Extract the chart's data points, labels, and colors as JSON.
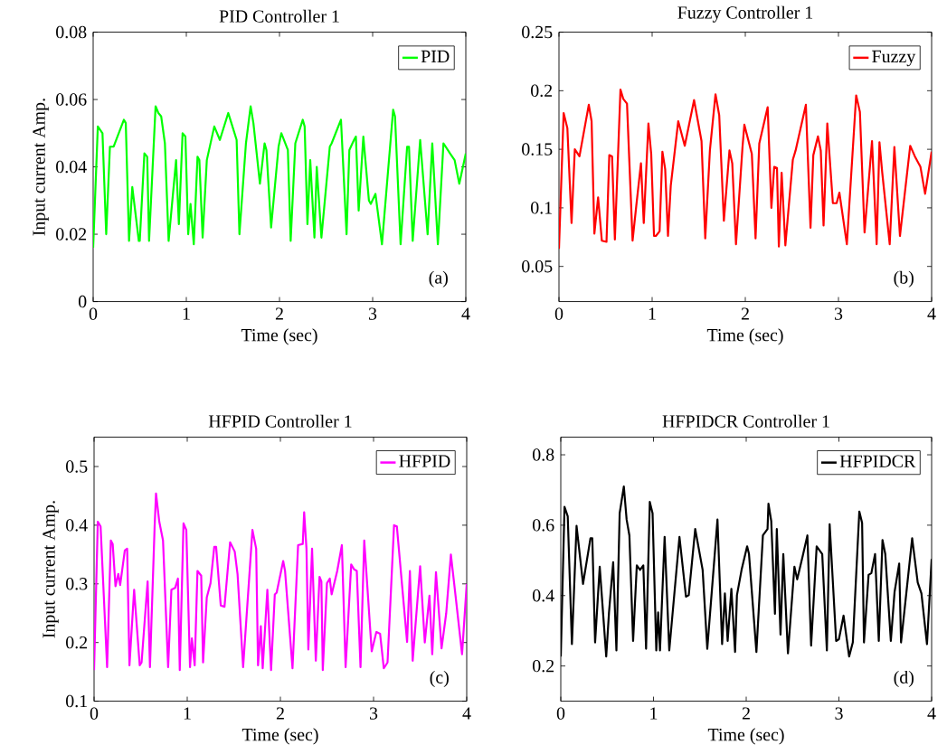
{
  "chart_data": [
    {
      "type": "line",
      "title": "PID Controller 1",
      "xlabel": "Time (sec)",
      "ylabel": "Input current  Amp.",
      "xlim": [
        0,
        4
      ],
      "ylim": [
        0,
        0.08
      ],
      "xticks": [
        0,
        1,
        2,
        3,
        4
      ],
      "yticks": [
        0,
        0.02,
        0.04,
        0.06,
        0.08
      ],
      "legend": "top right",
      "annotations": [
        "(a)"
      ],
      "series": [
        {
          "name": "PID",
          "color": "#00ff00",
          "x": [
            0,
            0.05,
            0.1,
            0.14,
            0.18,
            0.22,
            0.33,
            0.35,
            0.385,
            0.42,
            0.49,
            0.5,
            0.55,
            0.58,
            0.6,
            0.67,
            0.7,
            0.73,
            0.77,
            0.81,
            0.89,
            0.92,
            0.96,
            0.99,
            1.02,
            1.045,
            1.08,
            1.12,
            1.14,
            1.175,
            1.22,
            1.3,
            1.36,
            1.45,
            1.54,
            1.57,
            1.64,
            1.69,
            1.72,
            1.79,
            1.84,
            1.86,
            1.91,
            1.99,
            2.02,
            2.09,
            2.12,
            2.17,
            2.25,
            2.27,
            2.3,
            2.33,
            2.375,
            2.4,
            2.45,
            2.54,
            2.56,
            2.66,
            2.72,
            2.75,
            2.8,
            2.82,
            2.85,
            2.9,
            2.96,
            2.98,
            3.03,
            3.1,
            3.22,
            3.24,
            3.3,
            3.37,
            3.39,
            3.43,
            3.51,
            3.59,
            3.64,
            3.7,
            3.76,
            3.83,
            3.88,
            3.93,
            4.0
          ],
          "values": [
            0.016,
            0.052,
            0.05,
            0.02,
            0.046,
            0.046,
            0.054,
            0.053,
            0.018,
            0.034,
            0.018,
            0.018,
            0.044,
            0.043,
            0.018,
            0.058,
            0.056,
            0.055,
            0.047,
            0.018,
            0.042,
            0.023,
            0.05,
            0.049,
            0.02,
            0.029,
            0.017,
            0.043,
            0.042,
            0.019,
            0.042,
            0.052,
            0.048,
            0.056,
            0.048,
            0.02,
            0.047,
            0.058,
            0.053,
            0.035,
            0.047,
            0.045,
            0.022,
            0.046,
            0.05,
            0.045,
            0.018,
            0.047,
            0.054,
            0.052,
            0.023,
            0.042,
            0.019,
            0.04,
            0.019,
            0.046,
            0.047,
            0.054,
            0.02,
            0.045,
            0.048,
            0.049,
            0.027,
            0.049,
            0.03,
            0.029,
            0.032,
            0.017,
            0.057,
            0.055,
            0.017,
            0.046,
            0.046,
            0.018,
            0.048,
            0.02,
            0.047,
            0.017,
            0.047,
            0.044,
            0.042,
            0.035,
            0.044
          ]
        }
      ]
    },
    {
      "type": "line",
      "title": "Fuzzy Controller 1",
      "xlabel": "Time (sec)",
      "xlim": [
        0,
        4
      ],
      "ylim": [
        0.02,
        0.25
      ],
      "xticks": [
        0,
        1,
        2,
        3,
        4
      ],
      "yticks": [
        0.05,
        0.1,
        0.15,
        0.2,
        0.25
      ],
      "legend": "top right",
      "annotations": [
        "(b)"
      ],
      "series": [
        {
          "name": "Fuzzy",
          "color": "#ff0000",
          "x": [
            0,
            0.05,
            0.09,
            0.135,
            0.17,
            0.22,
            0.32,
            0.35,
            0.38,
            0.42,
            0.46,
            0.51,
            0.54,
            0.57,
            0.6,
            0.66,
            0.69,
            0.73,
            0.79,
            0.83,
            0.88,
            0.91,
            0.96,
            0.99,
            1.02,
            1.04,
            1.08,
            1.11,
            1.14,
            1.17,
            1.2,
            1.28,
            1.35,
            1.45,
            1.53,
            1.57,
            1.62,
            1.68,
            1.72,
            1.77,
            1.83,
            1.86,
            1.9,
            1.97,
            1.99,
            2.07,
            2.11,
            2.15,
            2.24,
            2.28,
            2.31,
            2.34,
            2.36,
            2.39,
            2.43,
            2.51,
            2.54,
            2.65,
            2.7,
            2.73,
            2.78,
            2.81,
            2.84,
            2.88,
            2.94,
            2.98,
            3.01,
            3.09,
            3.19,
            3.23,
            3.28,
            3.36,
            3.41,
            3.44,
            3.47,
            3.55,
            3.6,
            3.66,
            3.77,
            3.82,
            3.88,
            3.93,
            4.0
          ],
          "values": [
            0.065,
            0.181,
            0.168,
            0.087,
            0.15,
            0.144,
            0.188,
            0.174,
            0.078,
            0.109,
            0.072,
            0.071,
            0.145,
            0.144,
            0.073,
            0.201,
            0.193,
            0.189,
            0.072,
            0.102,
            0.138,
            0.087,
            0.172,
            0.146,
            0.076,
            0.076,
            0.08,
            0.148,
            0.133,
            0.076,
            0.119,
            0.174,
            0.153,
            0.192,
            0.157,
            0.074,
            0.149,
            0.197,
            0.179,
            0.089,
            0.149,
            0.138,
            0.069,
            0.152,
            0.171,
            0.146,
            0.074,
            0.155,
            0.186,
            0.1,
            0.135,
            0.134,
            0.067,
            0.13,
            0.068,
            0.141,
            0.149,
            0.188,
            0.083,
            0.145,
            0.161,
            0.149,
            0.085,
            0.172,
            0.104,
            0.104,
            0.113,
            0.069,
            0.196,
            0.182,
            0.079,
            0.157,
            0.069,
            0.156,
            0.13,
            0.069,
            0.152,
            0.076,
            0.153,
            0.144,
            0.135,
            0.112,
            0.148
          ]
        }
      ]
    },
    {
      "type": "line",
      "title": "HFPID Controller 1",
      "xlabel": "Time (sec)",
      "ylabel": "Input current  Amp.",
      "xlim": [
        0,
        4
      ],
      "ylim": [
        0.1,
        0.55
      ],
      "xticks": [
        0,
        1,
        2,
        3,
        4
      ],
      "yticks": [
        0.1,
        0.2,
        0.3,
        0.4,
        0.5
      ],
      "legend": "top right",
      "annotations": [
        "(c)"
      ],
      "series": [
        {
          "name": "HFPID",
          "color": "#ff00ff",
          "x": [
            0,
            0.04,
            0.07,
            0.14,
            0.18,
            0.2,
            0.23,
            0.26,
            0.28,
            0.33,
            0.355,
            0.38,
            0.43,
            0.49,
            0.51,
            0.575,
            0.6,
            0.65,
            0.665,
            0.7,
            0.74,
            0.795,
            0.83,
            0.87,
            0.9,
            0.92,
            0.96,
            0.99,
            1.03,
            1.05,
            1.08,
            1.11,
            1.15,
            1.17,
            1.21,
            1.25,
            1.29,
            1.31,
            1.36,
            1.4,
            1.46,
            1.51,
            1.54,
            1.6,
            1.7,
            1.74,
            1.76,
            1.79,
            1.81,
            1.86,
            1.9,
            1.94,
            1.96,
            2.03,
            2.05,
            2.13,
            2.19,
            2.24,
            2.255,
            2.28,
            2.3,
            2.34,
            2.38,
            2.42,
            2.44,
            2.455,
            2.5,
            2.53,
            2.55,
            2.61,
            2.66,
            2.7,
            2.76,
            2.79,
            2.82,
            2.86,
            2.9,
            2.98,
            3.03,
            3.07,
            3.11,
            3.15,
            3.22,
            3.25,
            3.36,
            3.39,
            3.42,
            3.5,
            3.55,
            3.6,
            3.63,
            3.67,
            3.73,
            3.78,
            3.83,
            3.88,
            3.95,
            4.0
          ],
          "values": [
            0.153,
            0.406,
            0.398,
            0.158,
            0.374,
            0.368,
            0.296,
            0.317,
            0.298,
            0.357,
            0.36,
            0.161,
            0.29,
            0.161,
            0.166,
            0.304,
            0.158,
            0.398,
            0.454,
            0.406,
            0.374,
            0.158,
            0.29,
            0.293,
            0.309,
            0.153,
            0.403,
            0.392,
            0.158,
            0.207,
            0.161,
            0.322,
            0.314,
            0.166,
            0.277,
            0.301,
            0.363,
            0.363,
            0.263,
            0.261,
            0.371,
            0.355,
            0.317,
            0.158,
            0.392,
            0.36,
            0.161,
            0.228,
            0.156,
            0.29,
            0.153,
            0.282,
            0.285,
            0.339,
            0.322,
            0.156,
            0.366,
            0.368,
            0.422,
            0.36,
            0.188,
            0.36,
            0.169,
            0.312,
            0.304,
            0.153,
            0.301,
            0.309,
            0.282,
            0.322,
            0.366,
            0.158,
            0.333,
            0.325,
            0.322,
            0.158,
            0.374,
            0.185,
            0.218,
            0.215,
            0.156,
            0.166,
            0.4,
            0.398,
            0.201,
            0.322,
            0.169,
            0.33,
            0.2,
            0.28,
            0.18,
            0.32,
            0.19,
            0.25,
            0.35,
            0.28,
            0.18,
            0.3
          ]
        }
      ]
    },
    {
      "type": "line",
      "title": "HFPIDCR Controller 1",
      "xlabel": "Time (sec)",
      "xlim": [
        0,
        4
      ],
      "ylim": [
        0.1,
        0.85
      ],
      "xticks": [
        0,
        1,
        2,
        3,
        4
      ],
      "yticks": [
        0.2,
        0.4,
        0.6,
        0.8
      ],
      "legend": "top right",
      "annotations": [
        "(d)"
      ],
      "series": [
        {
          "name": "HFPIDCR",
          "color": "#000000",
          "x": [
            0,
            0.04,
            0.075,
            0.12,
            0.17,
            0.24,
            0.32,
            0.34,
            0.37,
            0.42,
            0.49,
            0.52,
            0.565,
            0.6,
            0.635,
            0.68,
            0.71,
            0.74,
            0.78,
            0.82,
            0.855,
            0.89,
            0.92,
            0.96,
            0.99,
            1.03,
            1.05,
            1.07,
            1.12,
            1.17,
            1.28,
            1.35,
            1.38,
            1.45,
            1.53,
            1.58,
            1.69,
            1.74,
            1.77,
            1.8,
            1.84,
            1.88,
            1.9,
            1.95,
            2.01,
            2.03,
            2.11,
            2.18,
            2.23,
            2.24,
            2.27,
            2.31,
            2.33,
            2.37,
            2.4,
            2.45,
            2.52,
            2.55,
            2.61,
            2.66,
            2.7,
            2.76,
            2.82,
            2.87,
            2.9,
            2.97,
            3.0,
            3.05,
            3.11,
            3.15,
            3.22,
            3.25,
            3.27,
            3.32,
            3.35,
            3.39,
            3.43,
            3.47,
            3.5,
            3.56,
            3.6,
            3.65,
            3.67,
            3.71,
            3.79,
            3.85,
            3.89,
            3.95,
            4.0
          ],
          "values": [
            0.227,
            0.652,
            0.625,
            0.262,
            0.598,
            0.433,
            0.563,
            0.563,
            0.267,
            0.482,
            0.227,
            0.352,
            0.495,
            0.244,
            0.634,
            0.71,
            0.616,
            0.571,
            0.271,
            0.486,
            0.473,
            0.486,
            0.249,
            0.666,
            0.634,
            0.244,
            0.352,
            0.244,
            0.567,
            0.244,
            0.567,
            0.397,
            0.401,
            0.589,
            0.473,
            0.249,
            0.616,
            0.262,
            0.406,
            0.271,
            0.419,
            0.24,
            0.401,
            0.473,
            0.54,
            0.518,
            0.24,
            0.571,
            0.589,
            0.661,
            0.612,
            0.348,
            0.589,
            0.289,
            0.518,
            0.236,
            0.482,
            0.446,
            0.513,
            0.571,
            0.258,
            0.54,
            0.518,
            0.244,
            0.603,
            0.271,
            0.276,
            0.343,
            0.227,
            0.267,
            0.639,
            0.607,
            0.267,
            0.459,
            0.464,
            0.518,
            0.271,
            0.558,
            0.518,
            0.271,
            0.41,
            0.491,
            0.267,
            0.365,
            0.563,
            0.437,
            0.406,
            0.262,
            0.504
          ]
        }
      ]
    }
  ]
}
